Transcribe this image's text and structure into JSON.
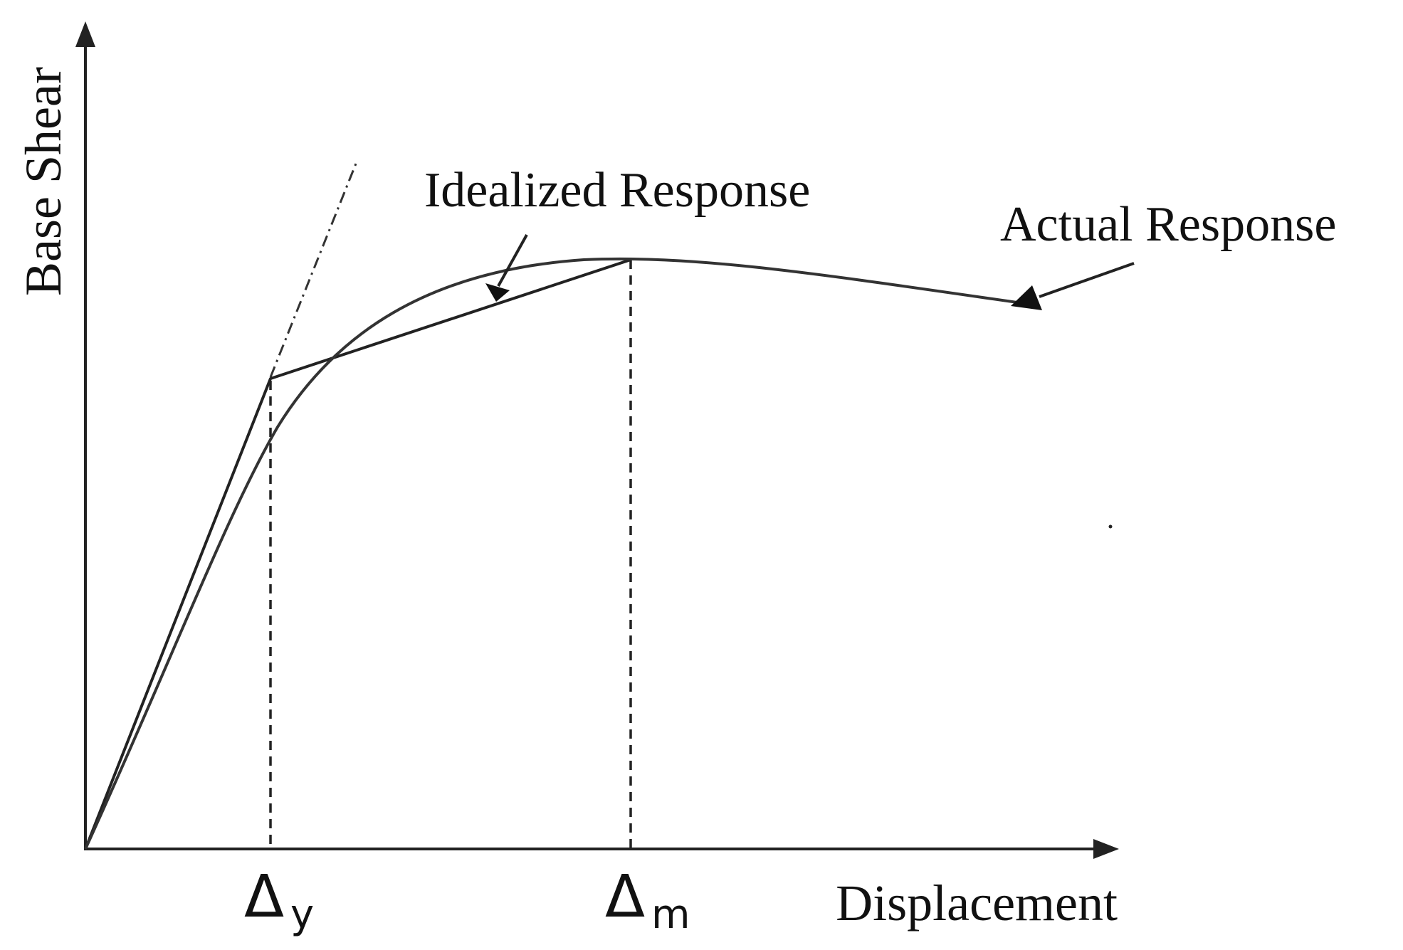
{
  "diagram": {
    "y_axis_label": "Base Shear",
    "x_axis_label": "Displacement",
    "marker_y": {
      "symbol": "Δ",
      "subscript": "y"
    },
    "marker_m": {
      "symbol": "Δ",
      "subscript": "m"
    },
    "idealized_label": "Idealized Response",
    "actual_label": "Actual Response"
  },
  "colors": {
    "ink": "#222222",
    "background": "#ffffff"
  }
}
